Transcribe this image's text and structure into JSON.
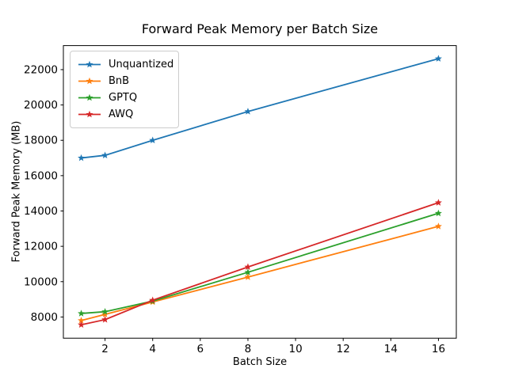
{
  "chart_data": {
    "type": "line",
    "title": "Forward Peak Memory per Batch Size",
    "xlabel": "Batch Size",
    "ylabel": "Forward Peak Memory (MB)",
    "x": [
      1,
      2,
      4,
      8,
      16
    ],
    "series": [
      {
        "name": "Unquantized",
        "color": "#1f77b4",
        "marker": "star",
        "values": [
          17000,
          17150,
          18000,
          19630,
          22620
        ]
      },
      {
        "name": "BnB",
        "color": "#ff7f0e",
        "marker": "star",
        "values": [
          7800,
          8150,
          8850,
          10260,
          13130
        ]
      },
      {
        "name": "GPTQ",
        "color": "#2ca02c",
        "marker": "star",
        "values": [
          8200,
          8300,
          8900,
          10530,
          13870
        ]
      },
      {
        "name": "AWQ",
        "color": "#d62728",
        "marker": "star",
        "values": [
          7560,
          7850,
          8950,
          10830,
          14470
        ]
      }
    ],
    "xlim": [
      0.25,
      16.75
    ],
    "ylim": [
      6800,
      23360
    ],
    "xticks": [
      2,
      4,
      6,
      8,
      10,
      12,
      14,
      16
    ],
    "yticks": [
      8000,
      10000,
      12000,
      14000,
      16000,
      18000,
      20000,
      22000
    ],
    "grid": false,
    "legend_position": "upper-left",
    "axis_color": "#000000",
    "background": "#ffffff"
  }
}
